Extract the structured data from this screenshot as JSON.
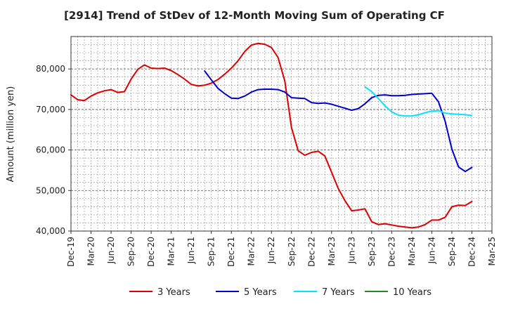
{
  "chart_data": {
    "type": "line",
    "title": "[2914]  Trend of StDev of 12-Month Moving Sum of Operating CF",
    "xlabel": "",
    "ylabel": "Amount (million yen)",
    "ylim": [
      40000,
      88000
    ],
    "yticks": [
      40000,
      50000,
      60000,
      70000,
      80000
    ],
    "ytick_labels": [
      "40,000",
      "50,000",
      "60,000",
      "70,000",
      "80,000"
    ],
    "xlim": [
      "2019-12",
      "2025-03"
    ],
    "xtick_labels": [
      "Dec-19",
      "Mar-20",
      "Jun-20",
      "Sep-20",
      "Dec-20",
      "Mar-21",
      "Jun-21",
      "Sep-21",
      "Dec-21",
      "Mar-22",
      "Jun-22",
      "Sep-22",
      "Dec-22",
      "Mar-23",
      "Jun-23",
      "Sep-23",
      "Dec-23",
      "Mar-24",
      "Jun-24",
      "Sep-24",
      "Dec-24",
      "Mar-25"
    ],
    "grid": true,
    "legend_position": "bottom",
    "series": [
      {
        "name": "3 Years",
        "color": "#dd0000",
        "start": "2019-12",
        "values": [
          73600,
          72400,
          72200,
          73300,
          74100,
          74600,
          74900,
          74200,
          74400,
          77500,
          79900,
          81000,
          80200,
          80100,
          80200,
          79600,
          78600,
          77500,
          76200,
          75800,
          76000,
          76500,
          77400,
          78700,
          80200,
          82000,
          84300,
          85900,
          86300,
          86100,
          85300,
          82800,
          77000,
          65500,
          59800,
          58700,
          59400,
          59700,
          58500,
          54500,
          50500,
          47500,
          45000,
          45200,
          45500,
          42300,
          41600,
          41800,
          41500,
          41200,
          41000,
          40800,
          41000,
          41600,
          42700,
          42700,
          43400,
          46000,
          46400,
          46300,
          47300
        ]
      },
      {
        "name": "5 Years",
        "color": "#0000cc",
        "start": "2021-08",
        "values": [
          79500,
          77300,
          75200,
          73900,
          72800,
          72700,
          73300,
          74300,
          74900,
          75000,
          75000,
          74900,
          74300,
          72900,
          72800,
          72700,
          71700,
          71500,
          71600,
          71300,
          70800,
          70300,
          69800,
          70200,
          71400,
          72900,
          73500,
          73600,
          73400,
          73400,
          73500,
          73700,
          73800,
          73900,
          74000,
          71900,
          67100,
          60200,
          55800,
          54700,
          55700
        ]
      },
      {
        "name": "7 Years",
        "color": "#00e5ff",
        "start": "2023-08",
        "values": [
          75600,
          74400,
          72700,
          70900,
          69400,
          68600,
          68400,
          68400,
          68700,
          69200,
          69600,
          69700,
          69100,
          68900,
          68800,
          68700,
          68500
        ]
      },
      {
        "name": "10 Years",
        "color": "#228b22",
        "start": "2024-12",
        "values": []
      }
    ]
  }
}
